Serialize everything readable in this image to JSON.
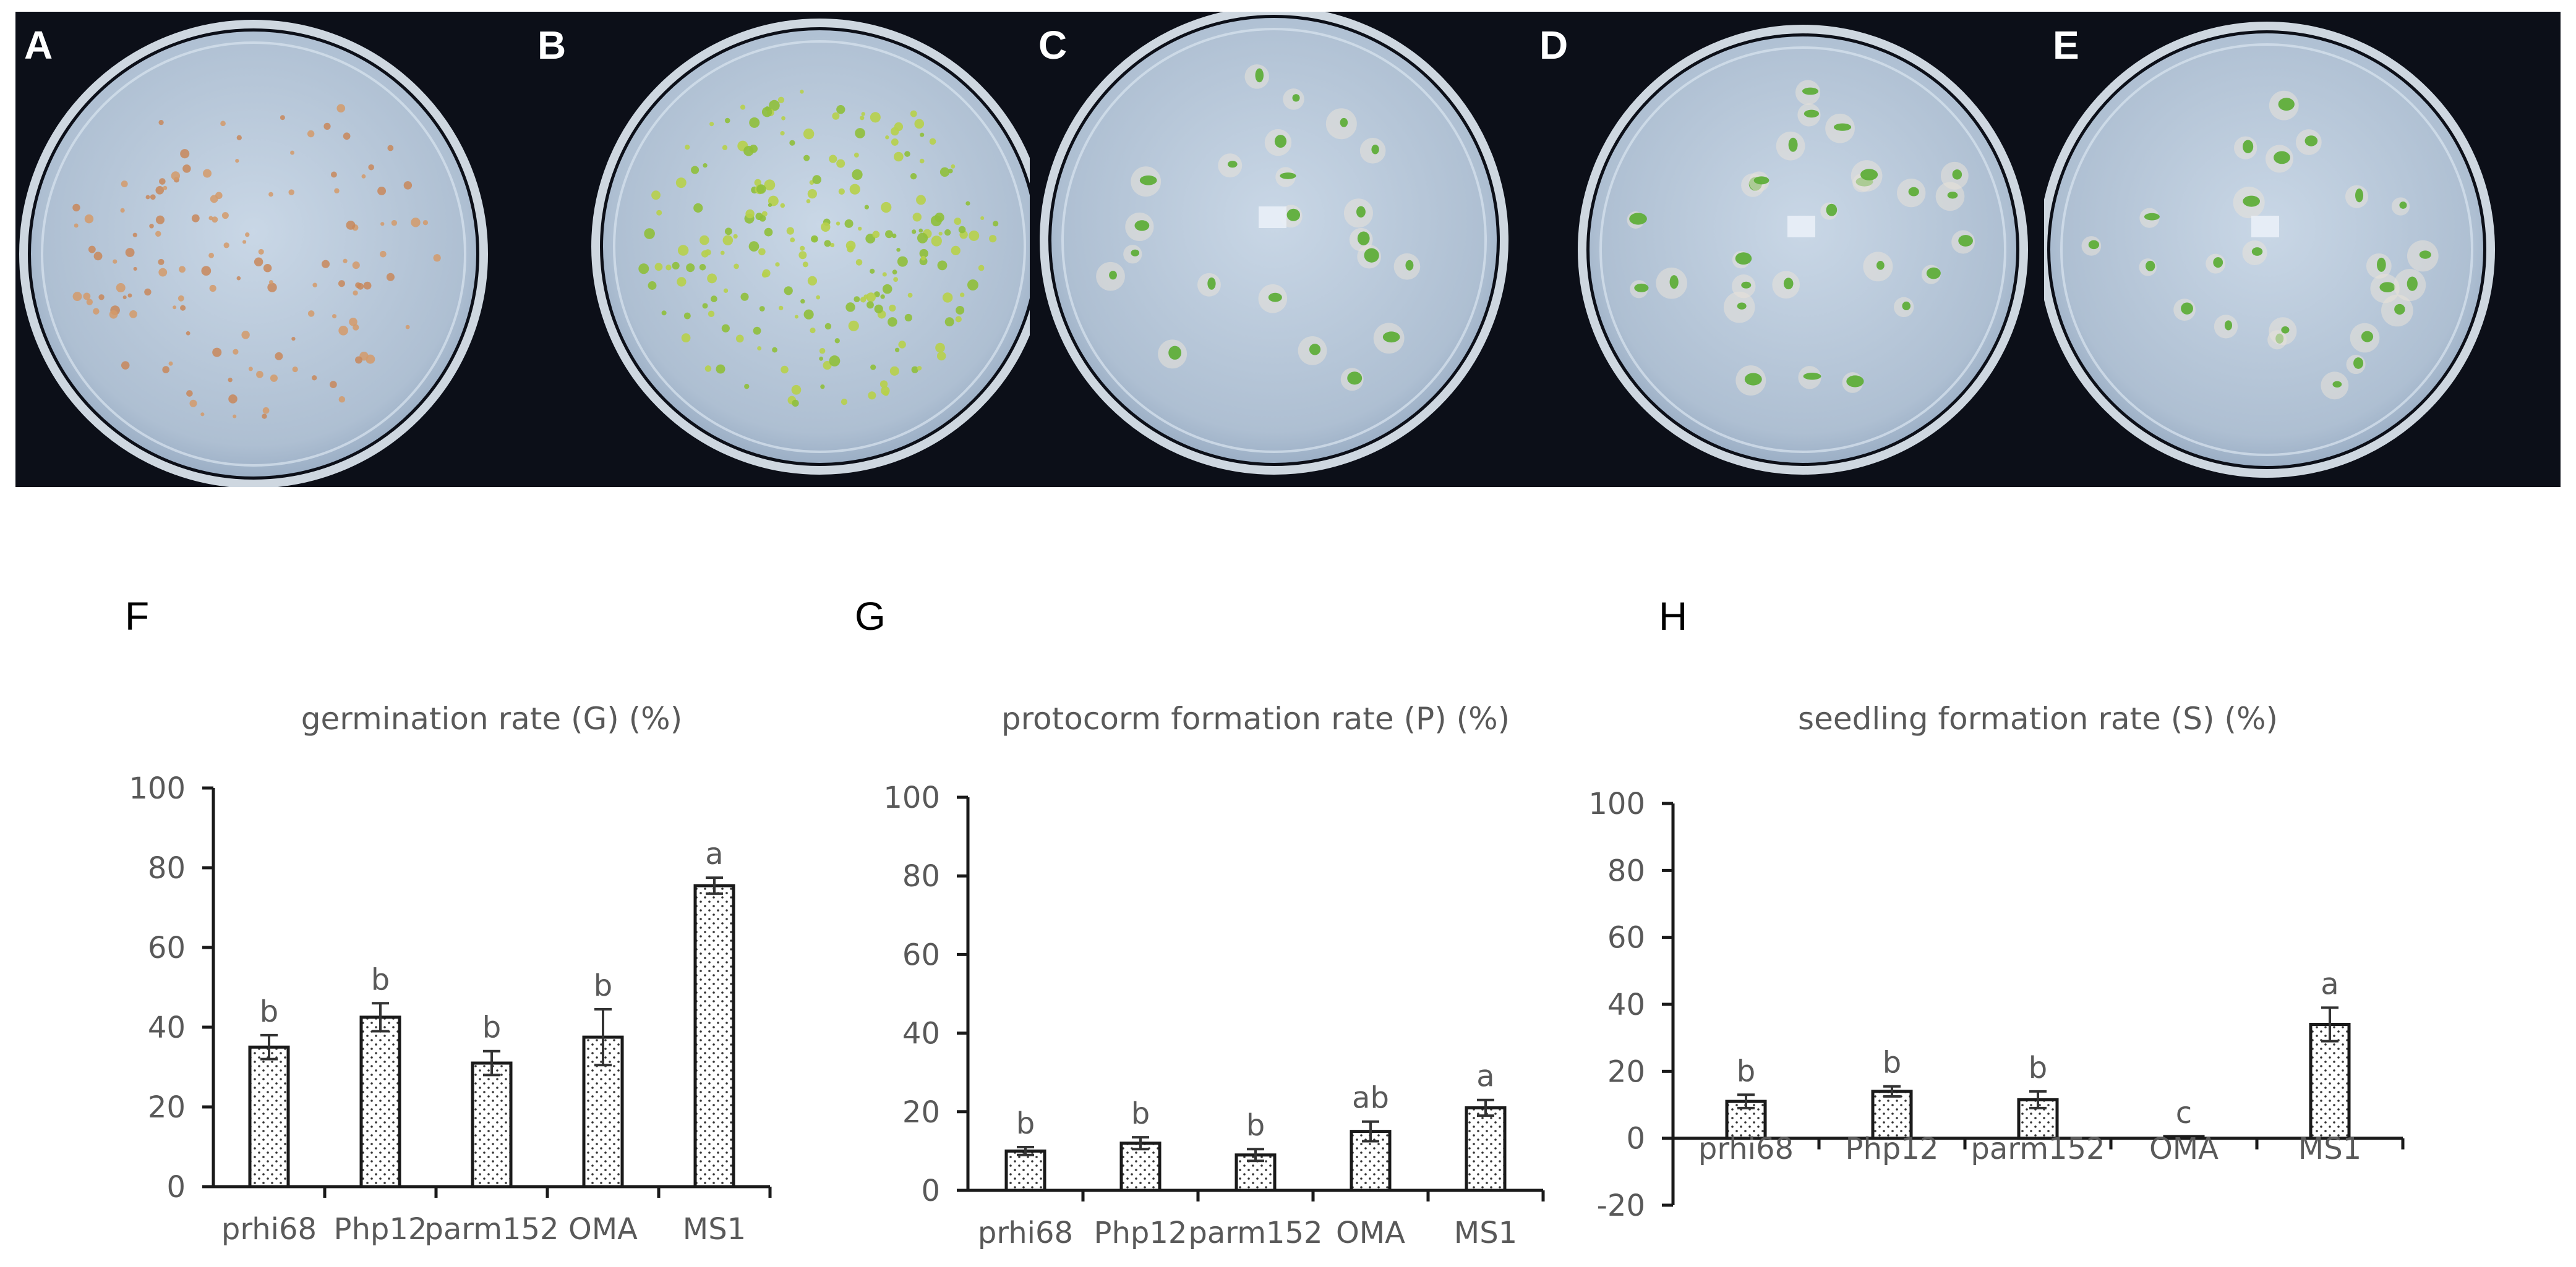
{
  "photo_panels": [
    {
      "letter": "A"
    },
    {
      "letter": "B"
    },
    {
      "letter": "C"
    },
    {
      "letter": "D"
    },
    {
      "letter": "E"
    }
  ],
  "colors": {
    "background_dark": "#0c0f18",
    "dish": "#aebfd2",
    "dish_rim": "#e3edf6",
    "bar_stroke": "#1a1a1a",
    "axis": "#1a1a1a",
    "text": "#595959"
  },
  "chart_data": [
    {
      "panel": "F",
      "type": "bar",
      "title": "germination rate (G)  (%)",
      "categories": [
        "prhi68",
        "Php12",
        "parm152",
        "OMA",
        "MS1"
      ],
      "values": [
        35,
        42.5,
        31,
        37.5,
        75.5
      ],
      "errors": [
        3,
        3.5,
        3,
        7,
        2
      ],
      "significance": [
        "b",
        "b",
        "b",
        "b",
        "a"
      ],
      "ylim": [
        0,
        100
      ],
      "yticks": [
        "0",
        "20",
        "40",
        "60",
        "80",
        "100"
      ],
      "ytick_values": [
        0,
        20,
        40,
        60,
        80,
        100
      ]
    },
    {
      "panel": "G",
      "type": "bar",
      "title": "protocorm formation rate (P)  (%)",
      "categories": [
        "prhi68",
        "Php12",
        "parm152",
        "OMA",
        "MS1"
      ],
      "values": [
        10,
        12,
        9,
        15,
        21
      ],
      "errors": [
        1,
        1.5,
        1.5,
        2.5,
        2
      ],
      "significance": [
        "b",
        "b",
        "b",
        "ab",
        "a"
      ],
      "ylim": [
        0,
        100
      ],
      "yticks": [
        "0",
        "20",
        "40",
        "60",
        "80",
        "100"
      ],
      "ytick_values": [
        0,
        20,
        40,
        60,
        80,
        100
      ]
    },
    {
      "panel": "H",
      "type": "bar",
      "title": "seedling formation rate (S)  (%)",
      "categories": [
        "prhi68",
        "Php12",
        "parm152",
        "OMA",
        "MS1"
      ],
      "values": [
        11,
        14,
        11.5,
        0.5,
        34
      ],
      "errors": [
        2,
        1.5,
        2.5,
        0,
        5
      ],
      "significance": [
        "b",
        "b",
        "b",
        "c",
        "a"
      ],
      "ylim": [
        -20,
        100
      ],
      "yticks": [
        "-20",
        "0",
        "20",
        "40",
        "60",
        "80",
        "100"
      ],
      "ytick_values": [
        -20,
        0,
        20,
        40,
        60,
        80,
        100
      ]
    }
  ]
}
